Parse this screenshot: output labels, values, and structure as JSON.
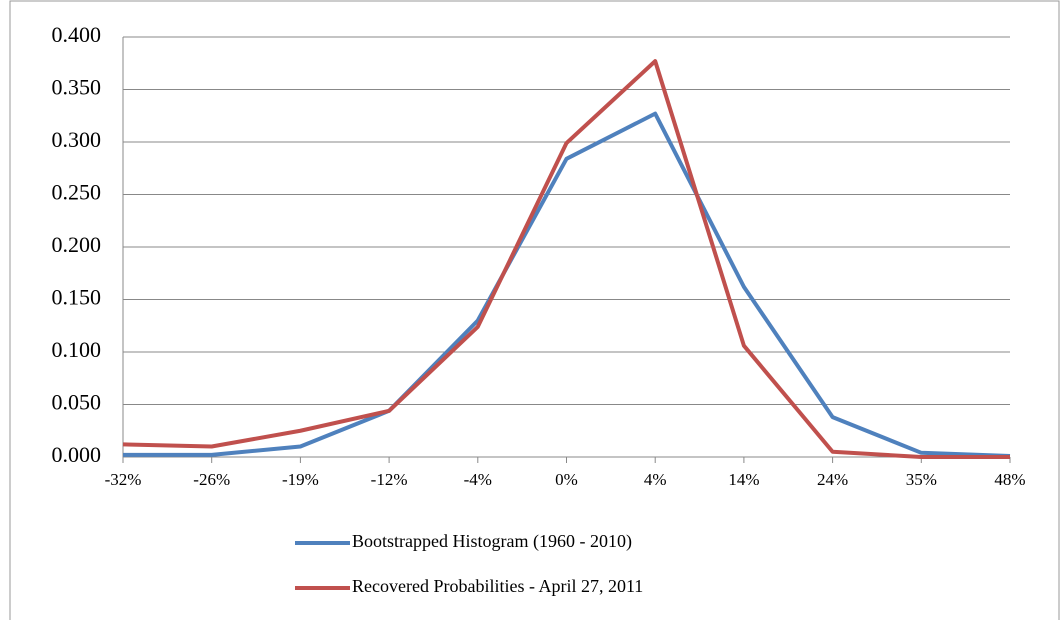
{
  "chart_data": {
    "type": "line",
    "categories": [
      "-32%",
      "-26%",
      "-19%",
      "-12%",
      "-4%",
      "0%",
      "4%",
      "14%",
      "24%",
      "35%",
      "48%"
    ],
    "series": [
      {
        "name": "Bootstrapped Histogram (1960 - 2010)",
        "color": "#4f81bd",
        "values": [
          0.002,
          0.002,
          0.01,
          0.044,
          0.13,
          0.284,
          0.327,
          0.162,
          0.038,
          0.004,
          0.001
        ]
      },
      {
        "name": "Recovered Probabilities - April 27, 2011",
        "color": "#c0504d",
        "values": [
          0.012,
          0.01,
          0.025,
          0.044,
          0.124,
          0.299,
          0.377,
          0.106,
          0.005,
          0.0,
          0.0
        ]
      }
    ],
    "ylim": [
      0,
      0.4
    ],
    "yticks": [
      {
        "value": 0,
        "label": "0.000"
      },
      {
        "value": 0.05,
        "label": "0.050"
      },
      {
        "value": 0.1,
        "label": "0.100"
      },
      {
        "value": 0.15,
        "label": "0.150"
      },
      {
        "value": 0.2,
        "label": "0.200"
      },
      {
        "value": 0.25,
        "label": "0.250"
      },
      {
        "value": 0.3,
        "label": "0.300"
      },
      {
        "value": 0.35,
        "label": "0.350"
      },
      {
        "value": 0.4,
        "label": "0.400"
      }
    ],
    "grid": true,
    "legend": "bottom"
  }
}
